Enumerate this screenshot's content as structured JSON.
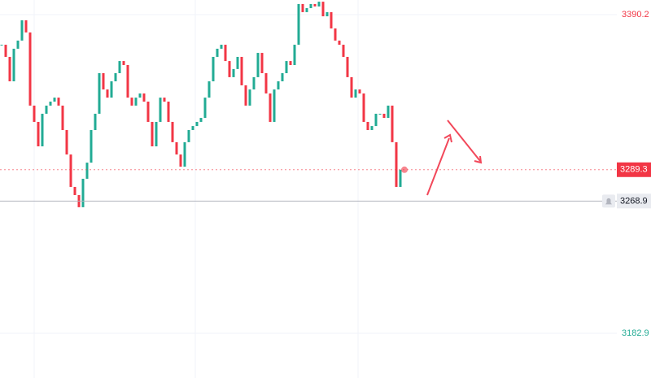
{
  "chart_data": {
    "type": "candlestick",
    "up_color": "#22ab94",
    "down_color": "#f23645",
    "values": [
      3370.6,
      3362.7,
      3346.8,
      3368.0,
      3373.3,
      3386.5,
      3378.6,
      3331.0,
      3320.4,
      3304.5,
      3325.7,
      3331.0,
      3333.6,
      3336.2,
      3331.0,
      3315.1,
      3299.2,
      3278.1,
      3272.8,
      3264.9,
      3283.4,
      3293.9,
      3315.1,
      3325.7,
      3352.1,
      3341.5,
      3336.2,
      3346.8,
      3352.1,
      3360.0,
      3357.4,
      3336.2,
      3331.0,
      3336.2,
      3338.9,
      3333.6,
      3320.4,
      3304.5,
      3320.4,
      3336.2,
      3333.6,
      3320.4,
      3307.2,
      3299.2,
      3291.3,
      3307.2,
      3315.1,
      3317.7,
      3320.4,
      3323.0,
      3336.2,
      3346.8,
      3362.7,
      3368.0,
      3370.6,
      3360.0,
      3349.5,
      3354.8,
      3362.7,
      3344.2,
      3331.0,
      3341.5,
      3349.5,
      3365.3,
      3352.1,
      3338.9,
      3320.4,
      3341.5,
      3346.8,
      3352.1,
      3360.0,
      3357.4,
      3370.6,
      3397.1,
      3391.8,
      3394.4,
      3397.1,
      3395.5,
      3398.6,
      3389.1,
      3391.8,
      3381.2,
      3373.3,
      3370.6,
      3362.7,
      3349.5,
      3336.2,
      3341.5,
      3338.9,
      3320.4,
      3315.1,
      3317.7,
      3325.7,
      3325.7,
      3323.0,
      3331.0,
      3307.2,
      3278.1,
      3289.3
    ],
    "ylim": [
      3153.8,
      3399.7
    ],
    "yticks": [
      3182.9,
      3390.2
    ],
    "grid": true,
    "price_lines": [
      {
        "value": 3289.3,
        "color": "#f23645",
        "style": "dashed"
      },
      {
        "value": 3268.9,
        "color": "#b2b5be",
        "style": "solid"
      }
    ]
  }
}
